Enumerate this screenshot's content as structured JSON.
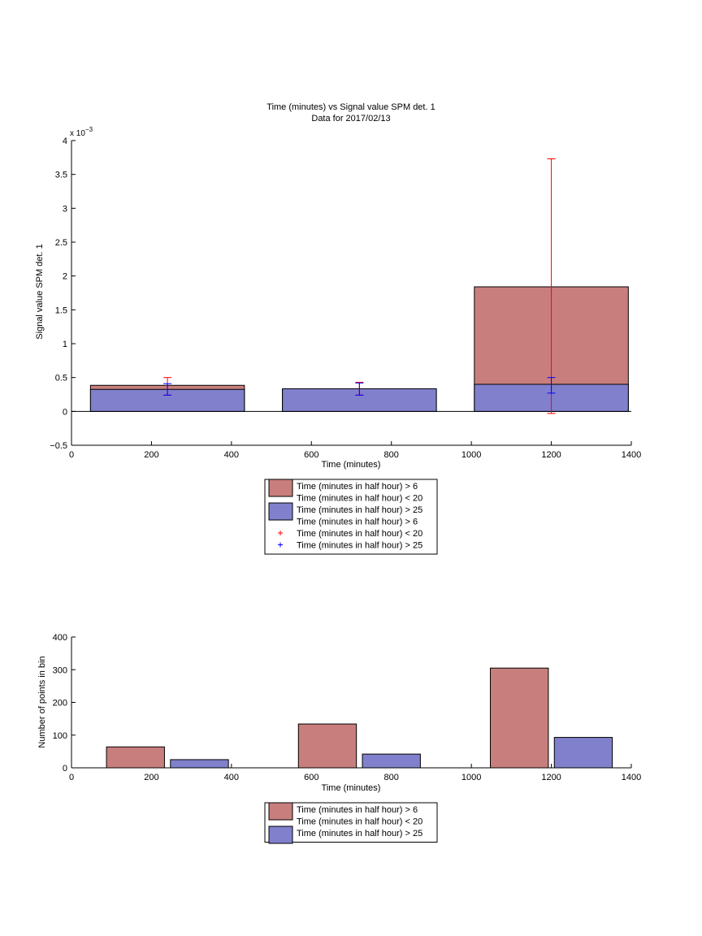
{
  "chart_data": [
    {
      "type": "bar",
      "title": "Time (minutes) vs Signal value SPM det. 1",
      "subtitle": "Data for 2017/02/13",
      "xlabel": "Time (minutes)",
      "ylabel": "Signal value SPM det. 1",
      "y_exponent_label": "x 10",
      "y_exponent_power": "−3",
      "xlim": [
        0,
        1400
      ],
      "ylim": [
        -0.5,
        4
      ],
      "y_scale_factor": 0.001,
      "grid": false,
      "xticks": [
        0,
        200,
        400,
        600,
        800,
        1000,
        1200,
        1400
      ],
      "yticks": [
        -0.5,
        0,
        0.5,
        1,
        1.5,
        2,
        2.5,
        3,
        3.5,
        4
      ],
      "ytick_labels": [
        "−0.5",
        "0",
        "0.5",
        "1",
        "1.5",
        "2",
        "2.5",
        "3",
        "3.5",
        "4"
      ],
      "colors": {
        "series1": "#c97e7e",
        "series2": "#8080cc",
        "err1": "#ff0000",
        "err2": "#0000ff"
      },
      "bar_width": 385,
      "bars": [
        {
          "x": 240,
          "series1": 0.385,
          "series2": 0.325
        },
        {
          "x": 720,
          "series1": 0.33,
          "series2": 0.335
        },
        {
          "x": 1200,
          "series1": 1.84,
          "series2": 0.4
        }
      ],
      "errorbars": [
        {
          "series": "series1",
          "x": 240,
          "y": 0.37,
          "low": 0.24,
          "high": 0.5
        },
        {
          "series": "series2",
          "x": 240,
          "y": 0.33,
          "low": 0.24,
          "high": 0.41
        },
        {
          "series": "series1",
          "x": 720,
          "y": 0.33,
          "low": 0.24,
          "high": 0.43
        },
        {
          "series": "series2",
          "x": 720,
          "y": 0.33,
          "low": 0.24,
          "high": 0.42
        },
        {
          "series": "series1",
          "x": 1200,
          "y": 1.84,
          "low": -0.03,
          "high": 3.73
        },
        {
          "series": "series2",
          "x": 1200,
          "y": 0.39,
          "low": 0.27,
          "high": 0.5
        }
      ],
      "legend": {
        "placement": "below",
        "entries": [
          {
            "kind": "patch",
            "color": "#c97e7e",
            "label": "Time (minutes in half hour) > 6"
          },
          {
            "kind": "text",
            "label": "Time (minutes in half hour) < 20"
          },
          {
            "kind": "patch",
            "color": "#8080cc",
            "label": "Time (minutes in half hour) > 25"
          },
          {
            "kind": "text",
            "label": "Time (minutes in half hour) > 6"
          },
          {
            "kind": "marker",
            "color": "#ff0000",
            "label": "Time (minutes in half hour) < 20"
          },
          {
            "kind": "marker",
            "color": "#0000ff",
            "label": "Time (minutes in half hour) > 25"
          }
        ]
      }
    },
    {
      "type": "bar",
      "xlabel": "Time (minutes)",
      "ylabel": "Number of points in bin",
      "xlim": [
        0,
        1400
      ],
      "ylim": [
        0,
        400
      ],
      "grid": false,
      "xticks": [
        0,
        200,
        400,
        600,
        800,
        1000,
        1200,
        1400
      ],
      "yticks": [
        0,
        100,
        200,
        300,
        400
      ],
      "colors": {
        "series1": "#c97e7e",
        "series2": "#8080cc"
      },
      "bar_width": 145,
      "bars": [
        {
          "series": "series1",
          "x": 160,
          "value": 64
        },
        {
          "series": "series2",
          "x": 320,
          "value": 25
        },
        {
          "series": "series1",
          "x": 640,
          "value": 134
        },
        {
          "series": "series2",
          "x": 800,
          "value": 42
        },
        {
          "series": "series1",
          "x": 1120,
          "value": 305
        },
        {
          "series": "series2",
          "x": 1280,
          "value": 93
        }
      ],
      "legend": {
        "placement": "below",
        "entries": [
          {
            "kind": "patch",
            "color": "#c97e7e",
            "label": "Time (minutes in half hour) > 6"
          },
          {
            "kind": "text",
            "label": "Time (minutes in half hour) < 20"
          },
          {
            "kind": "patch",
            "color": "#8080cc",
            "label": "Time (minutes in half hour) > 25"
          }
        ]
      }
    }
  ]
}
